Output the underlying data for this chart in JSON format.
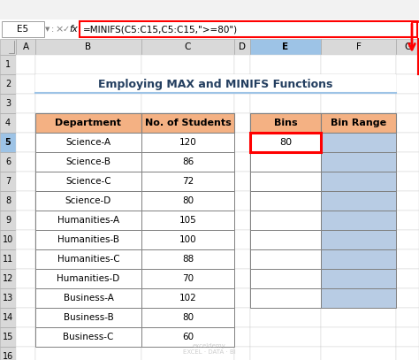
{
  "title": "Employing MAX and MINIFS Functions",
  "formula_bar_cell": "E5",
  "formula_bar_text": "=MINIFS(C5:C15,C5:C15,\">= 80\")",
  "col_headers": [
    "A",
    "B",
    "C",
    "D",
    "E",
    "F",
    "G"
  ],
  "dept_header": "Department",
  "students_header": "No. of Students",
  "bins_header": "Bins",
  "binrange_header": "Bin Range",
  "departments": [
    "Science-A",
    "Science-B",
    "Science-C",
    "Science-D",
    "Humanities-A",
    "Humanities-B",
    "Humanities-C",
    "Humanities-D",
    "Business-A",
    "Business-B",
    "Business-C"
  ],
  "students": [
    120,
    86,
    72,
    80,
    105,
    100,
    88,
    70,
    102,
    80,
    60
  ],
  "bins_value": "80",
  "header_orange": "#F4B183",
  "binrange_col_bg": "#B8CCE4",
  "selected_cell_border": "#FF0000",
  "arrow_color": "#FF0000",
  "title_color": "#243F60",
  "col_header_bg": "#D9D9D9",
  "row_header_bg": "#D9D9D9",
  "col_header_selected_bg": "#9DC3E6",
  "row_header_selected_bg": "#9DC3E6",
  "title_underline_color": "#9DC3E6",
  "bg_color": "#FFFFFF",
  "toolbar_bg": "#F2F2F2",
  "cell_border_color": "#D0D0D0",
  "table_border_color": "#808080"
}
